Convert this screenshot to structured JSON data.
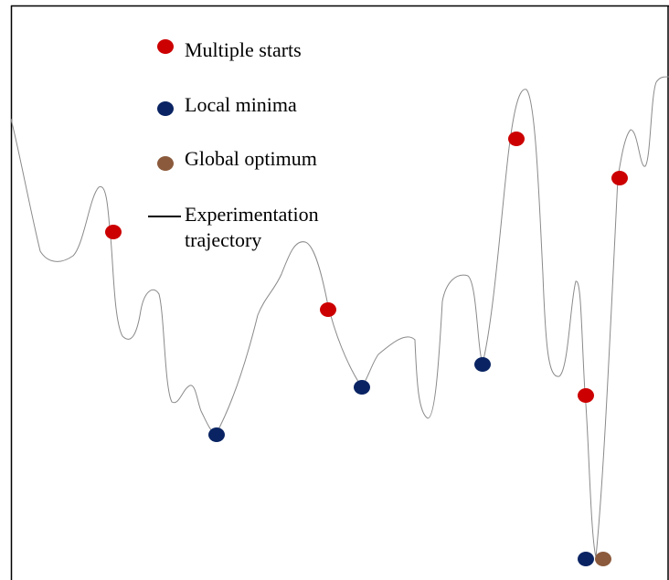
{
  "legend": {
    "multiple_starts": "Multiple starts",
    "local_minima": "Local minima",
    "global_optimum": "Global optimum",
    "trajectory_line1": "Experimentation",
    "trajectory_line2": "trajectory"
  },
  "colors": {
    "start": "#cc0000",
    "local_min": "#0a2463",
    "global_opt": "#8b5a3c",
    "curve": "#8a8a8a",
    "frame": "#000000"
  }
}
